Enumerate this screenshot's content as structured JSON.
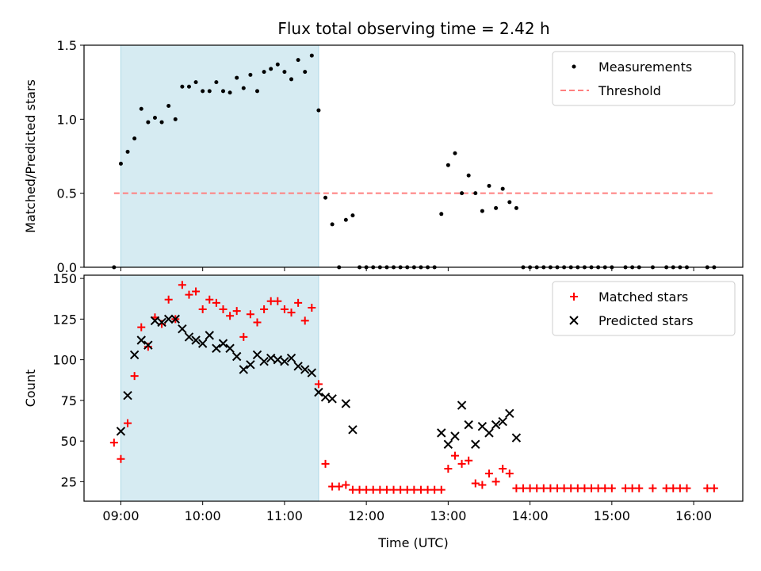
{
  "title": "Flux total observing time = 2.42 h",
  "colors": {
    "shade": "#add8e6",
    "threshold": "#ff7f7f",
    "matched": "#ff0000",
    "predicted": "#000000",
    "measurement": "#000000"
  },
  "chart_data": [
    {
      "type": "scatter",
      "ylabel": "Matched/Predicted stars",
      "xlabel": "",
      "x_range_hours": [
        8.55,
        16.6
      ],
      "ylim": [
        0,
        1.5
      ],
      "yticks": [
        "0.0",
        "0.5",
        "1.0",
        "1.5"
      ],
      "shaded_interval": [
        "09:00",
        "11:25"
      ],
      "legend": {
        "placement": "top-right",
        "entries": [
          "Measurements",
          "Threshold"
        ]
      },
      "threshold": {
        "name": "Threshold",
        "y": 0.5,
        "x_from": "08:55",
        "x_to": "16:15"
      },
      "series": [
        {
          "name": "Measurements",
          "marker": "dot",
          "points": [
            [
              "08:55",
              0.0
            ],
            [
              "09:00",
              0.7
            ],
            [
              "09:05",
              0.78
            ],
            [
              "09:10",
              0.87
            ],
            [
              "09:15",
              1.07
            ],
            [
              "09:20",
              0.98
            ],
            [
              "09:25",
              1.01
            ],
            [
              "09:30",
              0.98
            ],
            [
              "09:35",
              1.09
            ],
            [
              "09:40",
              1.0
            ],
            [
              "09:45",
              1.22
            ],
            [
              "09:50",
              1.22
            ],
            [
              "09:55",
              1.25
            ],
            [
              "10:00",
              1.19
            ],
            [
              "10:05",
              1.19
            ],
            [
              "10:10",
              1.25
            ],
            [
              "10:15",
              1.19
            ],
            [
              "10:20",
              1.18
            ],
            [
              "10:25",
              1.28
            ],
            [
              "10:30",
              1.21
            ],
            [
              "10:35",
              1.3
            ],
            [
              "10:40",
              1.19
            ],
            [
              "10:45",
              1.32
            ],
            [
              "10:50",
              1.34
            ],
            [
              "10:55",
              1.37
            ],
            [
              "11:00",
              1.32
            ],
            [
              "11:05",
              1.27
            ],
            [
              "11:10",
              1.4
            ],
            [
              "11:15",
              1.32
            ],
            [
              "11:20",
              1.43
            ],
            [
              "11:25",
              1.06
            ],
            [
              "11:30",
              0.47
            ],
            [
              "11:35",
              0.29
            ],
            [
              "11:40",
              0.0
            ],
            [
              "11:45",
              0.32
            ],
            [
              "11:50",
              0.35
            ],
            [
              "11:55",
              0.0
            ],
            [
              "12:00",
              0.0
            ],
            [
              "12:05",
              0.0
            ],
            [
              "12:10",
              0.0
            ],
            [
              "12:15",
              0.0
            ],
            [
              "12:20",
              0.0
            ],
            [
              "12:25",
              0.0
            ],
            [
              "12:30",
              0.0
            ],
            [
              "12:35",
              0.0
            ],
            [
              "12:40",
              0.0
            ],
            [
              "12:45",
              0.0
            ],
            [
              "12:50",
              0.0
            ],
            [
              "12:55",
              0.36
            ],
            [
              "13:00",
              0.69
            ],
            [
              "13:05",
              0.77
            ],
            [
              "13:10",
              0.5
            ],
            [
              "13:15",
              0.62
            ],
            [
              "13:20",
              0.5
            ],
            [
              "13:25",
              0.38
            ],
            [
              "13:30",
              0.55
            ],
            [
              "13:35",
              0.4
            ],
            [
              "13:40",
              0.53
            ],
            [
              "13:45",
              0.44
            ],
            [
              "13:50",
              0.4
            ],
            [
              "13:55",
              0.0
            ],
            [
              "14:00",
              0.0
            ],
            [
              "14:05",
              0.0
            ],
            [
              "14:10",
              0.0
            ],
            [
              "14:15",
              0.0
            ],
            [
              "14:20",
              0.0
            ],
            [
              "14:25",
              0.0
            ],
            [
              "14:30",
              0.0
            ],
            [
              "14:35",
              0.0
            ],
            [
              "14:40",
              0.0
            ],
            [
              "14:45",
              0.0
            ],
            [
              "14:50",
              0.0
            ],
            [
              "14:55",
              0.0
            ],
            [
              "15:00",
              0.0
            ],
            [
              "15:10",
              0.0
            ],
            [
              "15:15",
              0.0
            ],
            [
              "15:20",
              0.0
            ],
            [
              "15:30",
              0.0
            ],
            [
              "15:40",
              0.0
            ],
            [
              "15:45",
              0.0
            ],
            [
              "15:50",
              0.0
            ],
            [
              "15:55",
              0.0
            ],
            [
              "16:10",
              0.0
            ],
            [
              "16:15",
              0.0
            ]
          ]
        }
      ]
    },
    {
      "type": "scatter",
      "ylabel": "Count",
      "xlabel": "Time (UTC)",
      "x_range_hours": [
        8.55,
        16.6
      ],
      "ylim": [
        13,
        152
      ],
      "yticks": [
        "25",
        "50",
        "75",
        "100",
        "125",
        "150"
      ],
      "xticks": [
        "09:00",
        "10:00",
        "11:00",
        "12:00",
        "13:00",
        "14:00",
        "15:00",
        "16:00"
      ],
      "shaded_interval": [
        "09:00",
        "11:25"
      ],
      "legend": {
        "placement": "top-right",
        "entries": [
          "Matched stars",
          "Predicted stars"
        ]
      },
      "series": [
        {
          "name": "Matched stars",
          "marker": "plus",
          "points": [
            [
              "08:55",
              49
            ],
            [
              "09:00",
              39
            ],
            [
              "09:05",
              61
            ],
            [
              "09:10",
              90
            ],
            [
              "09:15",
              120
            ],
            [
              "09:20",
              108
            ],
            [
              "09:25",
              126
            ],
            [
              "09:30",
              122
            ],
            [
              "09:35",
              137
            ],
            [
              "09:40",
              125
            ],
            [
              "09:45",
              146
            ],
            [
              "09:50",
              140
            ],
            [
              "09:55",
              142
            ],
            [
              "10:00",
              131
            ],
            [
              "10:05",
              137
            ],
            [
              "10:10",
              135
            ],
            [
              "10:15",
              131
            ],
            [
              "10:20",
              127
            ],
            [
              "10:25",
              130
            ],
            [
              "10:30",
              114
            ],
            [
              "10:35",
              128
            ],
            [
              "10:40",
              123
            ],
            [
              "10:45",
              131
            ],
            [
              "10:50",
              136
            ],
            [
              "10:55",
              136
            ],
            [
              "11:00",
              131
            ],
            [
              "11:05",
              129
            ],
            [
              "11:10",
              135
            ],
            [
              "11:15",
              124
            ],
            [
              "11:20",
              132
            ],
            [
              "11:25",
              85
            ],
            [
              "11:30",
              36
            ],
            [
              "11:35",
              22
            ],
            [
              "11:40",
              22
            ],
            [
              "11:45",
              23
            ],
            [
              "11:50",
              20
            ],
            [
              "11:55",
              20
            ],
            [
              "12:00",
              20
            ],
            [
              "12:05",
              20
            ],
            [
              "12:10",
              20
            ],
            [
              "12:15",
              20
            ],
            [
              "12:20",
              20
            ],
            [
              "12:25",
              20
            ],
            [
              "12:30",
              20
            ],
            [
              "12:35",
              20
            ],
            [
              "12:40",
              20
            ],
            [
              "12:45",
              20
            ],
            [
              "12:50",
              20
            ],
            [
              "12:55",
              20
            ],
            [
              "13:00",
              33
            ],
            [
              "13:05",
              41
            ],
            [
              "13:10",
              36
            ],
            [
              "13:15",
              38
            ],
            [
              "13:20",
              24
            ],
            [
              "13:25",
              23
            ],
            [
              "13:30",
              30
            ],
            [
              "13:35",
              25
            ],
            [
              "13:40",
              33
            ],
            [
              "13:45",
              30
            ],
            [
              "13:50",
              21
            ],
            [
              "13:55",
              21
            ],
            [
              "14:00",
              21
            ],
            [
              "14:05",
              21
            ],
            [
              "14:10",
              21
            ],
            [
              "14:15",
              21
            ],
            [
              "14:20",
              21
            ],
            [
              "14:25",
              21
            ],
            [
              "14:30",
              21
            ],
            [
              "14:35",
              21
            ],
            [
              "14:40",
              21
            ],
            [
              "14:45",
              21
            ],
            [
              "14:50",
              21
            ],
            [
              "14:55",
              21
            ],
            [
              "15:00",
              21
            ],
            [
              "15:10",
              21
            ],
            [
              "15:15",
              21
            ],
            [
              "15:20",
              21
            ],
            [
              "15:30",
              21
            ],
            [
              "15:40",
              21
            ],
            [
              "15:45",
              21
            ],
            [
              "15:50",
              21
            ],
            [
              "15:55",
              21
            ],
            [
              "16:10",
              21
            ],
            [
              "16:15",
              21
            ]
          ]
        },
        {
          "name": "Predicted stars",
          "marker": "x",
          "points": [
            [
              "09:00",
              56
            ],
            [
              "09:05",
              78
            ],
            [
              "09:10",
              103
            ],
            [
              "09:15",
              112
            ],
            [
              "09:20",
              109
            ],
            [
              "09:25",
              124
            ],
            [
              "09:30",
              123
            ],
            [
              "09:35",
              125
            ],
            [
              "09:40",
              125
            ],
            [
              "09:45",
              119
            ],
            [
              "09:50",
              114
            ],
            [
              "09:55",
              112
            ],
            [
              "10:00",
              110
            ],
            [
              "10:05",
              115
            ],
            [
              "10:10",
              107
            ],
            [
              "10:15",
              110
            ],
            [
              "10:20",
              107
            ],
            [
              "10:25",
              102
            ],
            [
              "10:30",
              94
            ],
            [
              "10:35",
              97
            ],
            [
              "10:40",
              103
            ],
            [
              "10:45",
              99
            ],
            [
              "10:50",
              101
            ],
            [
              "10:55",
              100
            ],
            [
              "11:00",
              99
            ],
            [
              "11:05",
              101
            ],
            [
              "11:10",
              96
            ],
            [
              "11:15",
              94
            ],
            [
              "11:20",
              92
            ],
            [
              "11:25",
              80
            ],
            [
              "11:30",
              77
            ],
            [
              "11:35",
              76
            ],
            [
              "11:45",
              73
            ],
            [
              "11:50",
              57
            ],
            [
              "12:55",
              55
            ],
            [
              "13:00",
              48
            ],
            [
              "13:05",
              53
            ],
            [
              "13:10",
              72
            ],
            [
              "13:15",
              60
            ],
            [
              "13:20",
              48
            ],
            [
              "13:25",
              59
            ],
            [
              "13:30",
              55
            ],
            [
              "13:35",
              60
            ],
            [
              "13:40",
              62
            ],
            [
              "13:45",
              67
            ],
            [
              "13:50",
              52
            ]
          ]
        }
      ]
    }
  ]
}
